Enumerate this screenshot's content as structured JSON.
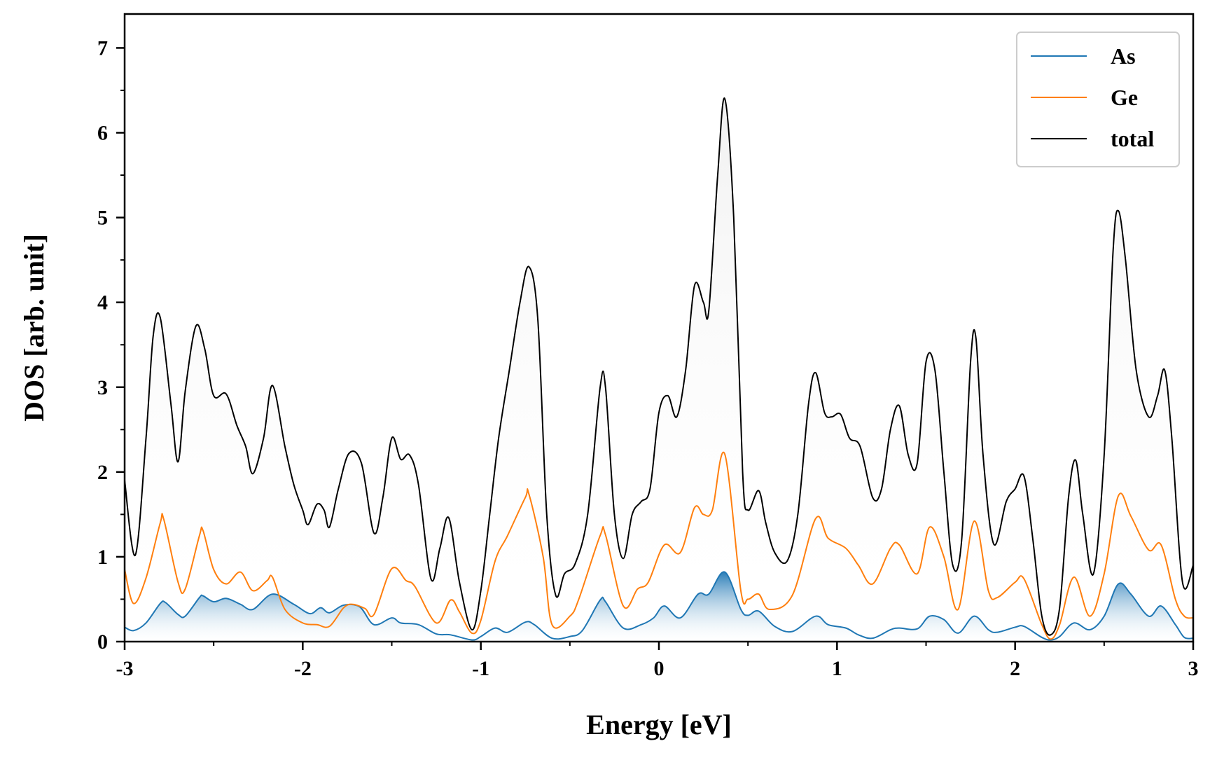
{
  "chart_data": {
    "type": "line",
    "title": "",
    "xlabel": "Energy [eV]",
    "ylabel": "DOS [arb. unit]",
    "xlim": [
      -3,
      3
    ],
    "ylim": [
      0,
      7.4
    ],
    "x_ticks": [
      -3,
      -2,
      -1,
      0,
      1,
      2,
      3
    ],
    "x_tick_labels": [
      "-3",
      "-2",
      "-1",
      "0",
      "1",
      "2",
      "3"
    ],
    "y_ticks": [
      0,
      1,
      2,
      3,
      4,
      5,
      6,
      7
    ],
    "y_tick_labels": [
      "0",
      "1",
      "2",
      "3",
      "4",
      "5",
      "6",
      "7"
    ],
    "grid": false,
    "legend_position": "top-right",
    "series": [
      {
        "name": "As",
        "color": "#1f77b4",
        "fill": "gradient-blue",
        "points": [
          [
            -3.0,
            0.17
          ],
          [
            -2.95,
            0.13
          ],
          [
            -2.88,
            0.22
          ],
          [
            -2.8,
            0.45
          ],
          [
            -2.77,
            0.46
          ],
          [
            -2.7,
            0.32
          ],
          [
            -2.66,
            0.3
          ],
          [
            -2.58,
            0.52
          ],
          [
            -2.56,
            0.54
          ],
          [
            -2.5,
            0.47
          ],
          [
            -2.43,
            0.51
          ],
          [
            -2.35,
            0.44
          ],
          [
            -2.28,
            0.38
          ],
          [
            -2.17,
            0.56
          ],
          [
            -2.05,
            0.44
          ],
          [
            -1.96,
            0.33
          ],
          [
            -1.9,
            0.4
          ],
          [
            -1.85,
            0.34
          ],
          [
            -1.77,
            0.43
          ],
          [
            -1.68,
            0.41
          ],
          [
            -1.6,
            0.2
          ],
          [
            -1.5,
            0.28
          ],
          [
            -1.45,
            0.22
          ],
          [
            -1.35,
            0.2
          ],
          [
            -1.25,
            0.09
          ],
          [
            -1.17,
            0.08
          ],
          [
            -1.05,
            0.02
          ],
          [
            -1.0,
            0.06
          ],
          [
            -0.92,
            0.16
          ],
          [
            -0.85,
            0.11
          ],
          [
            -0.75,
            0.23
          ],
          [
            -0.7,
            0.2
          ],
          [
            -0.6,
            0.04
          ],
          [
            -0.5,
            0.06
          ],
          [
            -0.43,
            0.13
          ],
          [
            -0.33,
            0.49
          ],
          [
            -0.3,
            0.47
          ],
          [
            -0.2,
            0.16
          ],
          [
            -0.1,
            0.2
          ],
          [
            -0.03,
            0.28
          ],
          [
            0.03,
            0.42
          ],
          [
            0.12,
            0.28
          ],
          [
            0.22,
            0.56
          ],
          [
            0.28,
            0.56
          ],
          [
            0.37,
            0.82
          ],
          [
            0.46,
            0.38
          ],
          [
            0.5,
            0.31
          ],
          [
            0.56,
            0.36
          ],
          [
            0.65,
            0.18
          ],
          [
            0.75,
            0.12
          ],
          [
            0.88,
            0.3
          ],
          [
            0.95,
            0.2
          ],
          [
            1.05,
            0.16
          ],
          [
            1.12,
            0.08
          ],
          [
            1.2,
            0.04
          ],
          [
            1.3,
            0.14
          ],
          [
            1.35,
            0.16
          ],
          [
            1.45,
            0.15
          ],
          [
            1.52,
            0.3
          ],
          [
            1.6,
            0.26
          ],
          [
            1.68,
            0.1
          ],
          [
            1.77,
            0.3
          ],
          [
            1.85,
            0.14
          ],
          [
            1.9,
            0.11
          ],
          [
            2.0,
            0.17
          ],
          [
            2.05,
            0.18
          ],
          [
            2.15,
            0.05
          ],
          [
            2.2,
            0.02
          ],
          [
            2.25,
            0.06
          ],
          [
            2.33,
            0.22
          ],
          [
            2.42,
            0.14
          ],
          [
            2.5,
            0.3
          ],
          [
            2.58,
            0.68
          ],
          [
            2.65,
            0.56
          ],
          [
            2.75,
            0.3
          ],
          [
            2.82,
            0.42
          ],
          [
            2.9,
            0.2
          ],
          [
            2.95,
            0.05
          ],
          [
            3.0,
            0.04
          ]
        ]
      },
      {
        "name": "Ge",
        "color": "#ff7f0e",
        "fill": "none",
        "points": [
          [
            -3.0,
            0.85
          ],
          [
            -2.95,
            0.45
          ],
          [
            -2.88,
            0.75
          ],
          [
            -2.8,
            1.4
          ],
          [
            -2.78,
            1.44
          ],
          [
            -2.7,
            0.7
          ],
          [
            -2.66,
            0.62
          ],
          [
            -2.58,
            1.25
          ],
          [
            -2.56,
            1.31
          ],
          [
            -2.5,
            0.85
          ],
          [
            -2.43,
            0.68
          ],
          [
            -2.35,
            0.82
          ],
          [
            -2.28,
            0.6
          ],
          [
            -2.2,
            0.72
          ],
          [
            -2.17,
            0.76
          ],
          [
            -2.1,
            0.38
          ],
          [
            -2.0,
            0.22
          ],
          [
            -1.92,
            0.2
          ],
          [
            -1.85,
            0.18
          ],
          [
            -1.77,
            0.4
          ],
          [
            -1.72,
            0.44
          ],
          [
            -1.65,
            0.39
          ],
          [
            -1.6,
            0.32
          ],
          [
            -1.5,
            0.86
          ],
          [
            -1.42,
            0.72
          ],
          [
            -1.37,
            0.65
          ],
          [
            -1.25,
            0.22
          ],
          [
            -1.17,
            0.49
          ],
          [
            -1.12,
            0.35
          ],
          [
            -1.05,
            0.1
          ],
          [
            -1.0,
            0.25
          ],
          [
            -0.92,
            0.95
          ],
          [
            -0.85,
            1.25
          ],
          [
            -0.75,
            1.7
          ],
          [
            -0.73,
            1.74
          ],
          [
            -0.65,
            1.0
          ],
          [
            -0.6,
            0.2
          ],
          [
            -0.5,
            0.3
          ],
          [
            -0.45,
            0.5
          ],
          [
            -0.33,
            1.25
          ],
          [
            -0.3,
            1.26
          ],
          [
            -0.2,
            0.42
          ],
          [
            -0.12,
            0.62
          ],
          [
            -0.06,
            0.7
          ],
          [
            0.03,
            1.14
          ],
          [
            0.12,
            1.05
          ],
          [
            0.2,
            1.58
          ],
          [
            0.25,
            1.5
          ],
          [
            0.3,
            1.55
          ],
          [
            0.37,
            2.21
          ],
          [
            0.46,
            0.6
          ],
          [
            0.5,
            0.5
          ],
          [
            0.56,
            0.56
          ],
          [
            0.62,
            0.38
          ],
          [
            0.75,
            0.55
          ],
          [
            0.88,
            1.45
          ],
          [
            0.95,
            1.22
          ],
          [
            1.05,
            1.1
          ],
          [
            1.12,
            0.9
          ],
          [
            1.2,
            0.68
          ],
          [
            1.3,
            1.1
          ],
          [
            1.35,
            1.14
          ],
          [
            1.45,
            0.8
          ],
          [
            1.52,
            1.35
          ],
          [
            1.6,
            1.0
          ],
          [
            1.68,
            0.38
          ],
          [
            1.77,
            1.42
          ],
          [
            1.85,
            0.6
          ],
          [
            1.9,
            0.52
          ],
          [
            2.0,
            0.7
          ],
          [
            2.05,
            0.74
          ],
          [
            2.15,
            0.2
          ],
          [
            2.2,
            0.03
          ],
          [
            2.25,
            0.2
          ],
          [
            2.33,
            0.76
          ],
          [
            2.42,
            0.3
          ],
          [
            2.5,
            0.8
          ],
          [
            2.58,
            1.72
          ],
          [
            2.65,
            1.48
          ],
          [
            2.75,
            1.08
          ],
          [
            2.82,
            1.14
          ],
          [
            2.9,
            0.5
          ],
          [
            2.95,
            0.3
          ],
          [
            3.0,
            0.28
          ]
        ]
      },
      {
        "name": "total",
        "color": "#000000",
        "fill": "gradient-grey",
        "points": [
          [
            -3.0,
            1.9
          ],
          [
            -2.94,
            1.02
          ],
          [
            -2.88,
            2.4
          ],
          [
            -2.84,
            3.6
          ],
          [
            -2.8,
            3.82
          ],
          [
            -2.74,
            2.8
          ],
          [
            -2.7,
            2.12
          ],
          [
            -2.66,
            2.95
          ],
          [
            -2.6,
            3.72
          ],
          [
            -2.55,
            3.45
          ],
          [
            -2.5,
            2.9
          ],
          [
            -2.43,
            2.92
          ],
          [
            -2.37,
            2.55
          ],
          [
            -2.32,
            2.3
          ],
          [
            -2.28,
            1.98
          ],
          [
            -2.22,
            2.4
          ],
          [
            -2.17,
            3.02
          ],
          [
            -2.1,
            2.3
          ],
          [
            -2.05,
            1.85
          ],
          [
            -2.0,
            1.55
          ],
          [
            -1.97,
            1.38
          ],
          [
            -1.92,
            1.62
          ],
          [
            -1.88,
            1.55
          ],
          [
            -1.85,
            1.35
          ],
          [
            -1.8,
            1.8
          ],
          [
            -1.74,
            2.22
          ],
          [
            -1.67,
            2.1
          ],
          [
            -1.6,
            1.28
          ],
          [
            -1.55,
            1.7
          ],
          [
            -1.5,
            2.4
          ],
          [
            -1.45,
            2.15
          ],
          [
            -1.4,
            2.2
          ],
          [
            -1.35,
            1.85
          ],
          [
            -1.28,
            0.74
          ],
          [
            -1.23,
            1.1
          ],
          [
            -1.18,
            1.46
          ],
          [
            -1.12,
            0.7
          ],
          [
            -1.05,
            0.14
          ],
          [
            -1.0,
            0.6
          ],
          [
            -0.95,
            1.5
          ],
          [
            -0.9,
            2.4
          ],
          [
            -0.84,
            3.2
          ],
          [
            -0.78,
            4.0
          ],
          [
            -0.73,
            4.42
          ],
          [
            -0.68,
            3.8
          ],
          [
            -0.63,
            1.5
          ],
          [
            -0.58,
            0.55
          ],
          [
            -0.53,
            0.8
          ],
          [
            -0.47,
            0.92
          ],
          [
            -0.4,
            1.5
          ],
          [
            -0.33,
            3.0
          ],
          [
            -0.3,
            3.0
          ],
          [
            -0.25,
            1.5
          ],
          [
            -0.2,
            0.98
          ],
          [
            -0.15,
            1.5
          ],
          [
            -0.1,
            1.65
          ],
          [
            -0.05,
            1.8
          ],
          [
            0.0,
            2.7
          ],
          [
            0.05,
            2.9
          ],
          [
            0.1,
            2.65
          ],
          [
            0.15,
            3.2
          ],
          [
            0.2,
            4.2
          ],
          [
            0.25,
            4.0
          ],
          [
            0.28,
            3.9
          ],
          [
            0.33,
            5.5
          ],
          [
            0.37,
            6.4
          ],
          [
            0.42,
            5.0
          ],
          [
            0.47,
            2.0
          ],
          [
            0.5,
            1.55
          ],
          [
            0.56,
            1.78
          ],
          [
            0.6,
            1.4
          ],
          [
            0.65,
            1.05
          ],
          [
            0.72,
            0.95
          ],
          [
            0.78,
            1.5
          ],
          [
            0.84,
            2.8
          ],
          [
            0.88,
            3.17
          ],
          [
            0.93,
            2.7
          ],
          [
            0.97,
            2.65
          ],
          [
            1.02,
            2.68
          ],
          [
            1.07,
            2.4
          ],
          [
            1.13,
            2.3
          ],
          [
            1.2,
            1.7
          ],
          [
            1.25,
            1.8
          ],
          [
            1.3,
            2.5
          ],
          [
            1.35,
            2.78
          ],
          [
            1.4,
            2.2
          ],
          [
            1.45,
            2.1
          ],
          [
            1.5,
            3.3
          ],
          [
            1.55,
            3.2
          ],
          [
            1.6,
            2.0
          ],
          [
            1.65,
            0.9
          ],
          [
            1.7,
            1.2
          ],
          [
            1.75,
            3.3
          ],
          [
            1.78,
            3.58
          ],
          [
            1.82,
            2.2
          ],
          [
            1.88,
            1.15
          ],
          [
            1.95,
            1.65
          ],
          [
            2.0,
            1.8
          ],
          [
            2.05,
            1.95
          ],
          [
            2.1,
            1.2
          ],
          [
            2.15,
            0.3
          ],
          [
            2.2,
            0.08
          ],
          [
            2.25,
            0.4
          ],
          [
            2.3,
            1.7
          ],
          [
            2.34,
            2.14
          ],
          [
            2.38,
            1.5
          ],
          [
            2.44,
            0.8
          ],
          [
            2.5,
            2.2
          ],
          [
            2.55,
            4.6
          ],
          [
            2.58,
            5.08
          ],
          [
            2.62,
            4.5
          ],
          [
            2.68,
            3.2
          ],
          [
            2.75,
            2.65
          ],
          [
            2.8,
            2.9
          ],
          [
            2.84,
            3.2
          ],
          [
            2.88,
            2.4
          ],
          [
            2.94,
            0.7
          ],
          [
            3.0,
            0.9
          ]
        ]
      }
    ]
  }
}
